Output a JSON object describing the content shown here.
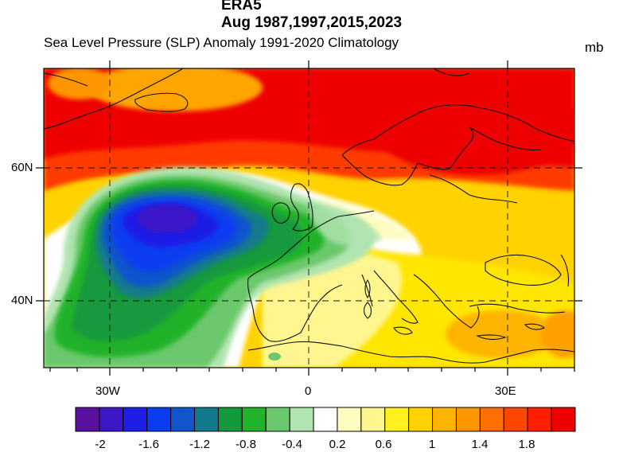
{
  "header": {
    "dataset": "ERA5",
    "period": "Aug 1987,1997,2015,2023",
    "subtitle": "Sea Level Pressure (SLP) Anomaly  1991-2020 Climatology",
    "units": "mb"
  },
  "axes": {
    "lat_labels": [
      "60N",
      "40N"
    ],
    "lon_labels": [
      "30W",
      "0",
      "30E"
    ]
  },
  "colorbar": {
    "colors": [
      "#5a0f9e",
      "#3d16c8",
      "#1e1ee6",
      "#0a3cf0",
      "#1055cc",
      "#127a8c",
      "#129a3c",
      "#22b22c",
      "#6cc86c",
      "#b0e4b0",
      "#ffffff",
      "#fffcc0",
      "#fff690",
      "#fff020",
      "#ffd200",
      "#ffb400",
      "#ff9600",
      "#ff6e00",
      "#ff4600",
      "#ff1e00",
      "#ee0000"
    ],
    "tick_labels": [
      "-2",
      "-1.6",
      "-1.2",
      "-0.8",
      "-0.4",
      "0.2",
      "0.6",
      "1",
      "1.4",
      "1.8"
    ]
  },
  "map": {
    "features": [
      "anomaly-high-arctic",
      "anomaly-high-scandinavia",
      "anomaly-low-north-atlantic",
      "mediterranean-positive"
    ]
  }
}
